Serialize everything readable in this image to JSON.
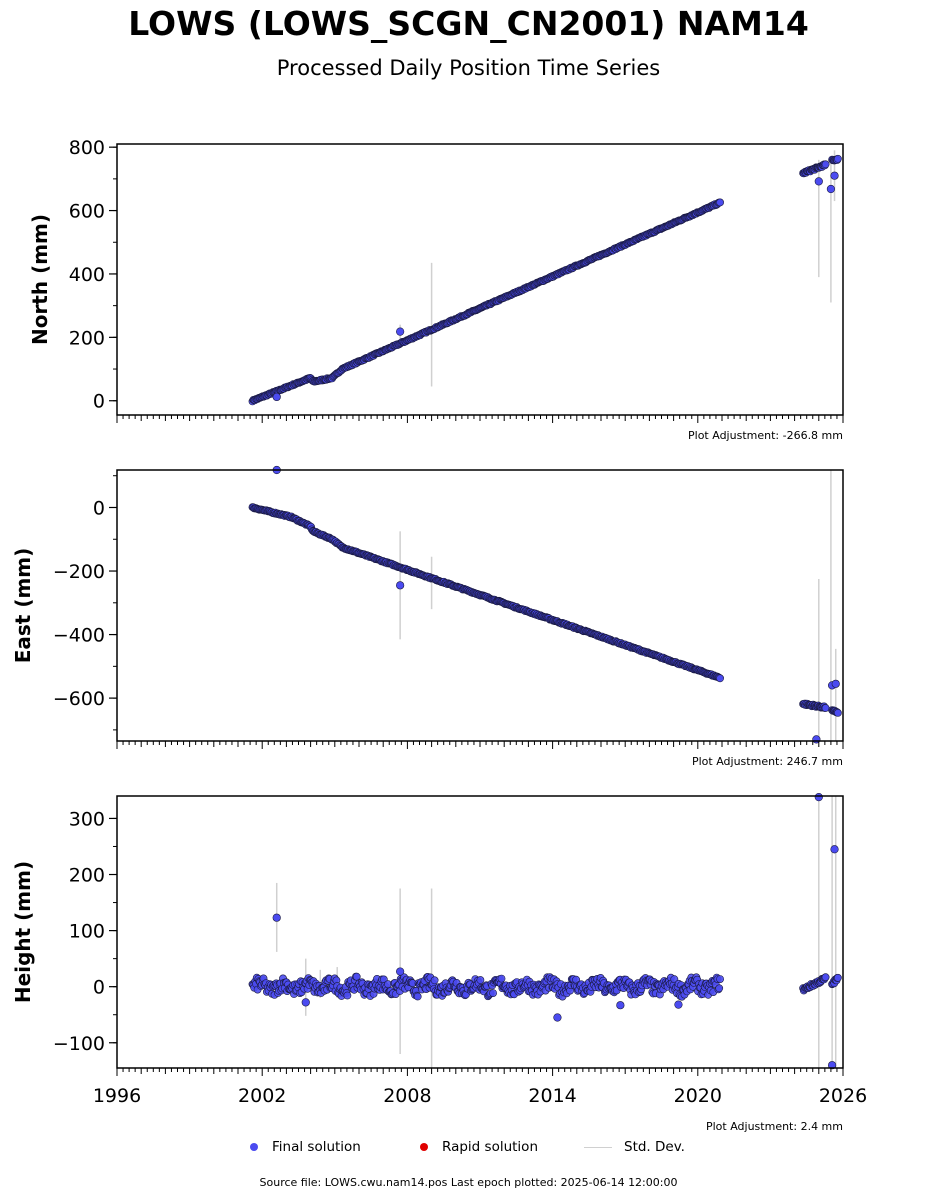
{
  "title": "LOWS (LOWS_SCGN_CN2001) NAM14",
  "subtitle": "Processed Daily Position Time Series",
  "footer": "Source file: LOWS.cwu.nam14.pos  Last epoch plotted: 2025-06-14 12:00:00",
  "legend": [
    {
      "label": "Final solution",
      "kind": "dot",
      "color": "#4b4bf0"
    },
    {
      "label": "Rapid solution",
      "kind": "dot",
      "color": "#e00000"
    },
    {
      "label": "Std. Dev.",
      "kind": "line",
      "color": "#d0d0d0"
    }
  ],
  "colors": {
    "final": "#4b4bf0",
    "edge": "#1a1a40",
    "stddev": "#d0d0d0"
  },
  "chart_data": [
    {
      "type": "scatter",
      "ylabel": "North (mm)",
      "adjustment": "Plot Adjustment: -266.8 mm",
      "xlim": [
        1996,
        2026
      ],
      "ylim": [
        -45,
        810
      ],
      "yticks": [
        0,
        200,
        400,
        600,
        800
      ],
      "ytick_labels": [
        "0",
        "200",
        "400",
        "600",
        "800"
      ],
      "trend": [
        [
          2001.6,
          0
        ],
        [
          2004.0,
          72
        ],
        [
          2004.1,
          60
        ],
        [
          2004.9,
          72
        ],
        [
          2005.3,
          100
        ],
        [
          2020.95,
          626
        ]
      ],
      "wiggle": 2,
      "clusters": [
        {
          "x": [
            2024.35,
            2025.3
          ],
          "y": [
            718,
            745
          ]
        },
        {
          "x": [
            2025.55,
            2025.8
          ],
          "y": [
            758,
            763
          ]
        }
      ],
      "outliers": [
        {
          "x": 2002.6,
          "y": 12
        },
        {
          "x": 2007.7,
          "y": 218
        },
        {
          "x": 2025.0,
          "y": 692
        },
        {
          "x": 2025.5,
          "y": 668
        },
        {
          "x": 2025.65,
          "y": 710
        }
      ],
      "errorbars": [
        {
          "x": 2007.7,
          "y0": 195,
          "y1": 240
        },
        {
          "x": 2009.0,
          "y0": 45,
          "y1": 435
        },
        {
          "x": 2025.0,
          "y0": 390,
          "y1": 760
        },
        {
          "x": 2025.5,
          "y0": 310,
          "y1": 770
        },
        {
          "x": 2025.65,
          "y0": 630,
          "y1": 790
        }
      ]
    },
    {
      "type": "scatter",
      "ylabel": "East (mm)",
      "adjustment": "Plot Adjustment: 246.7 mm",
      "xlim": [
        1996,
        2026
      ],
      "ylim": [
        -735,
        118
      ],
      "yticks": [
        0,
        -200,
        -400,
        -600
      ],
      "ytick_labels": [
        "0",
        "−200",
        "−400",
        "−600"
      ],
      "trend": [
        [
          2001.6,
          0
        ],
        [
          2003.2,
          -30
        ],
        [
          2004.0,
          -60
        ],
        [
          2004.1,
          -75
        ],
        [
          2004.9,
          -100
        ],
        [
          2005.3,
          -125
        ],
        [
          2020.95,
          -537
        ]
      ],
      "wiggle": 2,
      "clusters": [
        {
          "x": [
            2024.35,
            2025.3
          ],
          "y": [
            -618,
            -630
          ]
        },
        {
          "x": [
            2025.55,
            2025.8
          ],
          "y": [
            -640,
            -645
          ]
        }
      ],
      "outliers": [
        {
          "x": 2002.6,
          "y": 118
        },
        {
          "x": 2007.7,
          "y": -245
        },
        {
          "x": 2024.9,
          "y": -730
        },
        {
          "x": 2025.55,
          "y": -560
        },
        {
          "x": 2025.7,
          "y": -555
        }
      ],
      "errorbars": [
        {
          "x": 2007.7,
          "y0": -415,
          "y1": -75
        },
        {
          "x": 2009.0,
          "y0": -320,
          "y1": -155
        },
        {
          "x": 2025.0,
          "y0": -735,
          "y1": -225
        },
        {
          "x": 2025.5,
          "y0": -735,
          "y1": 118
        },
        {
          "x": 2025.7,
          "y0": -735,
          "y1": -445
        }
      ]
    },
    {
      "type": "scatter",
      "ylabel": "Height (mm)",
      "adjustment": "Plot Adjustment: 2.4 mm",
      "xlim": [
        1996,
        2026
      ],
      "ylim": [
        -145,
        340
      ],
      "yticks": [
        300,
        200,
        100,
        0,
        -100
      ],
      "ytick_labels": [
        "300",
        "200",
        "100",
        "0",
        "−100"
      ],
      "xticks": [
        1996,
        2002,
        2008,
        2014,
        2020,
        2026
      ],
      "xtick_labels": [
        "1996",
        "2002",
        "2008",
        "2014",
        "2020",
        "2026"
      ],
      "trend": [
        [
          2001.6,
          0
        ],
        [
          2020.95,
          0
        ]
      ],
      "wiggle": 12,
      "clusters": [
        {
          "x": [
            2024.35,
            2025.3
          ],
          "y": [
            -5,
            15
          ]
        },
        {
          "x": [
            2025.55,
            2025.8
          ],
          "y": [
            5,
            15
          ]
        }
      ],
      "outliers": [
        {
          "x": 2002.6,
          "y": 123
        },
        {
          "x": 2003.8,
          "y": -28
        },
        {
          "x": 2007.7,
          "y": 27
        },
        {
          "x": 2014.2,
          "y": -55
        },
        {
          "x": 2016.8,
          "y": -33
        },
        {
          "x": 2019.2,
          "y": -32
        },
        {
          "x": 2025.0,
          "y": 338
        },
        {
          "x": 2025.55,
          "y": -140
        },
        {
          "x": 2025.65,
          "y": 245
        }
      ],
      "errorbars": [
        {
          "x": 2002.6,
          "y0": 62,
          "y1": 185
        },
        {
          "x": 2003.8,
          "y0": -52,
          "y1": 50
        },
        {
          "x": 2004.4,
          "y0": -20,
          "y1": 30
        },
        {
          "x": 2005.1,
          "y0": -20,
          "y1": 35
        },
        {
          "x": 2007.7,
          "y0": -120,
          "y1": 175
        },
        {
          "x": 2009.0,
          "y0": -145,
          "y1": 175
        },
        {
          "x": 2025.0,
          "y0": -145,
          "y1": 340
        },
        {
          "x": 2025.55,
          "y0": -145,
          "y1": 340
        },
        {
          "x": 2025.7,
          "y0": -145,
          "y1": 340
        }
      ]
    }
  ]
}
